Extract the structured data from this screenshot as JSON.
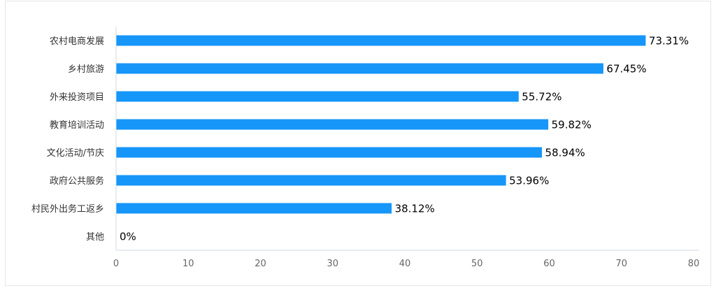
{
  "chart_data": {
    "type": "bar",
    "orientation": "horizontal",
    "categories": [
      "农村电商发展",
      "乡村旅游",
      "外来投资项目",
      "教育培训活动",
      "文化活动/节庆",
      "政府公共服务",
      "村民外出务工返乡",
      "其他"
    ],
    "values": [
      73.31,
      67.45,
      55.72,
      59.82,
      58.94,
      53.96,
      38.12,
      0
    ],
    "value_labels": [
      "73.31%",
      "67.45%",
      "55.72%",
      "59.82%",
      "58.94%",
      "53.96%",
      "38.12%",
      "0%"
    ],
    "xlim": [
      0,
      80
    ],
    "x_ticks": [
      0,
      10,
      20,
      30,
      40,
      50,
      60,
      70,
      80
    ],
    "grid": false,
    "bar_color": "#1696f8",
    "axis_color": "#d3d8e6"
  }
}
